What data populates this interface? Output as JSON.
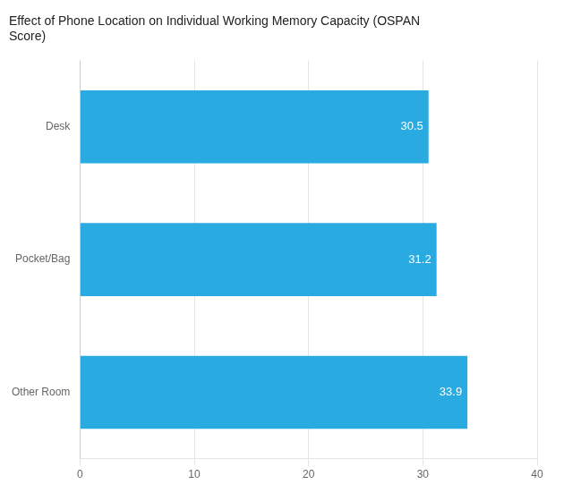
{
  "chart_data": {
    "type": "bar",
    "orientation": "horizontal",
    "title": "Effect of Phone Location on Individual Working Memory Capacity (OSPAN\nScore)",
    "categories": [
      "Other Room",
      "Pocket/Bag",
      "Desk"
    ],
    "values": [
      33.9,
      31.2,
      30.5
    ],
    "color": "#29ABE2",
    "xlim": [
      0,
      40
    ],
    "xticks": [
      0,
      10,
      20,
      30,
      40
    ],
    "grid": true,
    "data_labels": true
  }
}
